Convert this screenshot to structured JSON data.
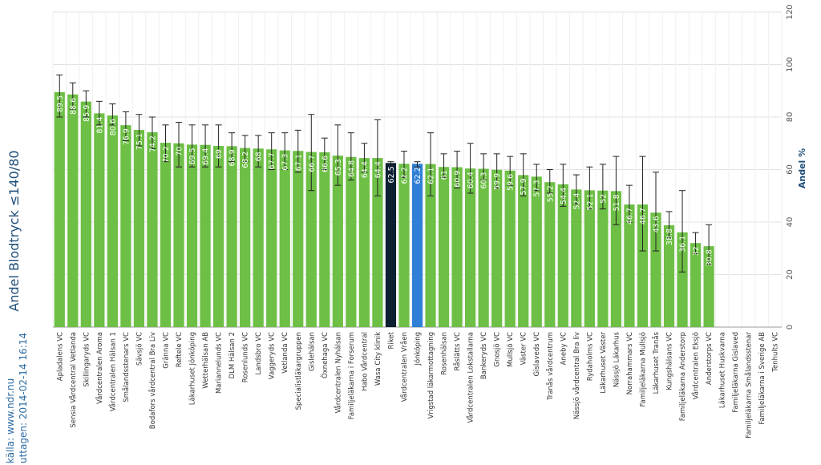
{
  "source": {
    "line1": "källa: www.ndr.nu",
    "line2": "uttagen: 2014-02-14 16:14"
  },
  "colors": {
    "bar": "#6dbf45",
    "riket": "#0d1f33",
    "jonkoping": "#2f7fd6",
    "grid": "#e2e2e2",
    "errorbar": "#222222"
  },
  "chart_data": {
    "type": "bar",
    "title": "Andel Blodtryck ≤140/80",
    "ylabel": "Andel %",
    "ylim": [
      0,
      120
    ],
    "yticks": [
      "0",
      "20",
      "40",
      "60",
      "80",
      "100",
      "120"
    ],
    "grid": true,
    "categories": [
      "Apladalens VC",
      "Sensia Vårdcentral Vetlanda",
      "Skillingaryds VC",
      "Vårdcentralen Aroma",
      "Vårdcentralen Hälsan 1",
      "Smålandsstenars VC",
      "Sävsjö VC",
      "Bodafors vårdcentral Bra Liv",
      "Gränna VC",
      "Reftele VC",
      "Läkarhuset Jönköping",
      "Wetterhälsan AB",
      "Mariannelunds VC",
      "DLM Hälsan 2",
      "Rosenlunds VC",
      "Landsbro VC",
      "Vaggeryds VC",
      "Vetlanda VC",
      "Specialistläkargruppen",
      "Gislehälsan",
      "Öxnehaga VC",
      "Vårdcentralen Nyhälsan",
      "Familjeläkarna i Forserum",
      "Habo Vårdcentral",
      "Wasa City klinik",
      "Riket",
      "Vårdcentralen Vråen",
      "Jönköping",
      "Vrigstad läkarmottagning",
      "Rosenhälsan",
      "Råslätts VC",
      "Vårdcentralen Lokstallarna",
      "Bankeryds VC",
      "Gnosjö VC",
      "Mullsjö VC",
      "Väster VC",
      "Gislaveds VC",
      "Tranås vårdcentrum",
      "Aneby VC",
      "Nässjö vårdcentral Bra liv",
      "Rydaholms VC",
      "Läkarhuset Väster",
      "Nässjö Läkarhus",
      "Norrahammars VC",
      "Familjeläkarna Mullsjö",
      "Läkarhuset Tranås",
      "Kungshälsans VC",
      "Familjeläkarna Anderstorp",
      "Vårdcentralen Eksjö",
      "Anderstorps VC",
      "Läkarhuset Huskvarna",
      "Familjeläkarna Gislaved",
      "Familjeläkarna Smålandsstenar",
      "Familjeläkarna i Sverige AB",
      "Tenhults VC"
    ],
    "values": [
      89.5,
      88.6,
      85.9,
      81.4,
      80.6,
      76.9,
      75.1,
      74.2,
      70.2,
      70,
      69.5,
      69.4,
      69,
      68.9,
      68.2,
      68,
      67.7,
      67.3,
      67.1,
      66.7,
      66.6,
      65.3,
      64.8,
      64.4,
      64.4,
      62.5,
      62.2,
      62.2,
      62.1,
      61,
      60.9,
      60.4,
      60.3,
      59.9,
      59.6,
      57.9,
      57.3,
      55.2,
      54.4,
      52.4,
      52.1,
      52,
      51.8,
      46.7,
      46.7,
      43.6,
      38.8,
      36.1,
      32,
      30.8,
      null,
      null,
      null,
      null,
      null
    ],
    "value_labels": [
      "89.5",
      "88.6",
      "85.9",
      "81.4",
      "80.6",
      "76.9",
      "75.1",
      "74.2",
      "70.2",
      "70",
      "69.5",
      "69.4",
      "69",
      "68.9",
      "68.2",
      "68",
      "67.7",
      "67.3",
      "67.1",
      "66.7",
      "66.6",
      "65.3",
      "64.8",
      "64.4",
      "64.4",
      "62.5",
      "62.2",
      "62.2",
      "62.1",
      "61",
      "60.9",
      "60.4",
      "60.3",
      "59.9",
      "59.6",
      "57.9",
      "57.3",
      "55.2",
      "54.4",
      "52.4",
      "52.1",
      "52",
      "51.8",
      "46.7",
      "46.7",
      "43.6",
      "38.8",
      "36.1",
      "32",
      "30.8",
      "",
      "",
      "",
      "",
      ""
    ],
    "error_low": [
      80,
      83,
      80,
      77,
      77,
      71,
      69,
      68,
      63,
      61,
      61,
      61,
      61,
      63,
      63,
      61,
      60,
      60,
      59,
      52,
      60,
      54,
      56,
      59,
      50,
      62,
      57,
      61,
      50,
      57,
      53,
      51,
      56,
      53,
      54,
      50,
      52,
      51,
      46,
      47,
      45,
      45,
      39,
      40,
      29,
      29,
      34,
      21,
      28,
      24,
      null,
      null,
      null,
      null,
      null
    ],
    "error_high": [
      96,
      93,
      90,
      86,
      85,
      82,
      81,
      80,
      77,
      78,
      77,
      77,
      77,
      74,
      73,
      73,
      74,
      74,
      75,
      81,
      72,
      77,
      74,
      70,
      79,
      63,
      67,
      63,
      74,
      66,
      67,
      70,
      66,
      66,
      65,
      66,
      62,
      60,
      62,
      58,
      61,
      62,
      65,
      54,
      65,
      59,
      44,
      52,
      36,
      39,
      null,
      null,
      null,
      null,
      null
    ],
    "highlight": {
      "Riket": "riket",
      "Jönköping": "jonkoping"
    }
  }
}
